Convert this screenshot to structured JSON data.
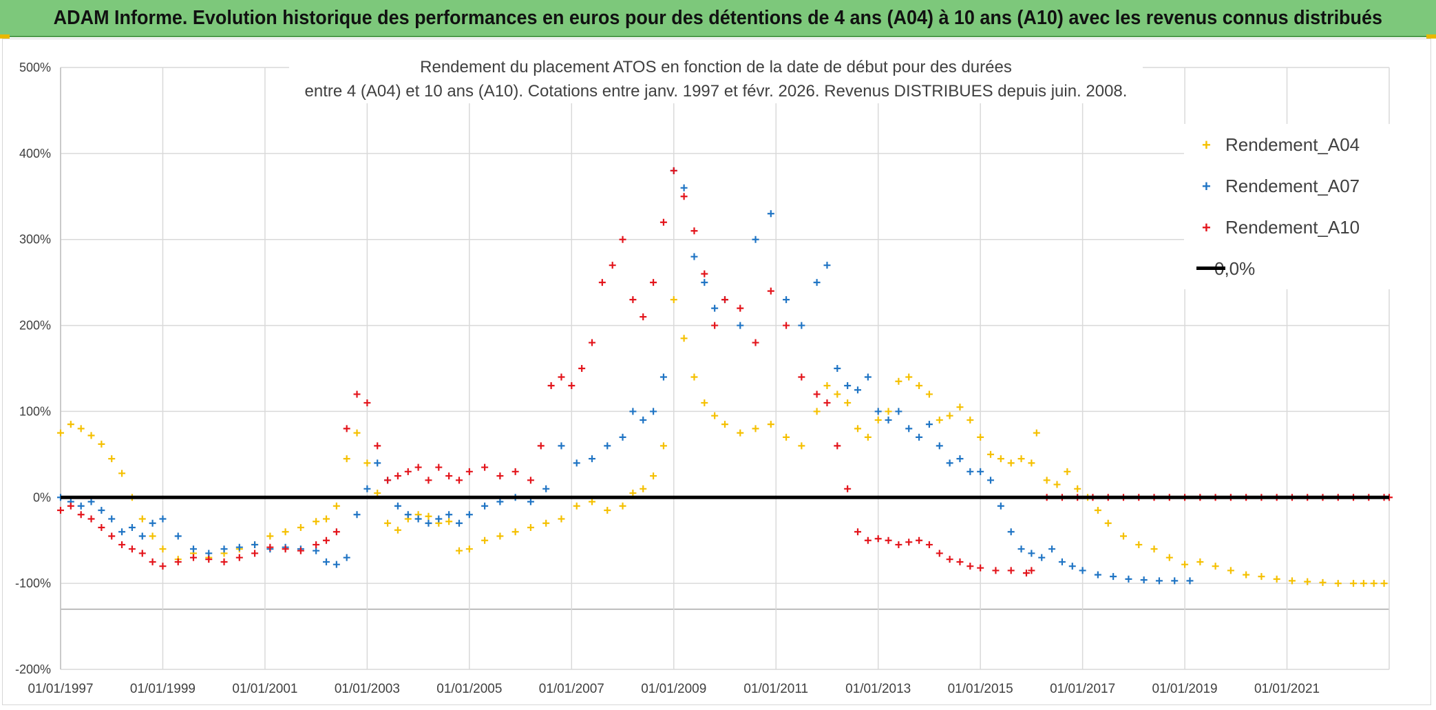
{
  "banner": {
    "title": "ADAM Informe. Evolution historique des performances en euros pour des détentions de 4 ans (A04) à 10 ans (A10) avec les revenus connus distribués"
  },
  "colors": {
    "banner_bg": "#7dc87b",
    "a04": "#f5c000",
    "a07": "#1f74c4",
    "a10": "#e3141b",
    "zero": "#000000",
    "grid": "#d9d9d9",
    "text": "#404040"
  },
  "chart_data": {
    "type": "scatter",
    "title_line1": "Rendement du placement ATOS en fonction de la date de début pour des durées",
    "title_line2": "entre 4 (A04) et 10 ans (A10). Cotations entre janv. 1997 et févr. 2026. Revenus DISTRIBUES depuis juin. 2008.",
    "xlabel": "",
    "ylabel": "",
    "xlim": [
      1997.0,
      2023.0
    ],
    "ylim": [
      -200,
      500
    ],
    "x_ticks": [
      {
        "x": 1997,
        "label": "01/01/1997"
      },
      {
        "x": 1999,
        "label": "01/01/1999"
      },
      {
        "x": 2001,
        "label": "01/01/2001"
      },
      {
        "x": 2003,
        "label": "01/01/2003"
      },
      {
        "x": 2005,
        "label": "01/01/2005"
      },
      {
        "x": 2007,
        "label": "01/01/2007"
      },
      {
        "x": 2009,
        "label": "01/01/2009"
      },
      {
        "x": 2011,
        "label": "01/01/2011"
      },
      {
        "x": 2013,
        "label": "01/01/2013"
      },
      {
        "x": 2015,
        "label": "01/01/2015"
      },
      {
        "x": 2017,
        "label": "01/01/2017"
      },
      {
        "x": 2019,
        "label": "01/01/2019"
      },
      {
        "x": 2021,
        "label": "01/01/2021"
      }
    ],
    "y_ticks": [
      {
        "y": 500,
        "label": "500%"
      },
      {
        "y": 400,
        "label": "400%"
      },
      {
        "y": 300,
        "label": "300%"
      },
      {
        "y": 200,
        "label": "200%"
      },
      {
        "y": 100,
        "label": "100%"
      },
      {
        "y": 0,
        "label": "0%"
      },
      {
        "y": -100,
        "label": "-100%"
      },
      {
        "y": -200,
        "label": "-200%"
      }
    ],
    "extra_gridline_y": -130,
    "legend_position": "top-right",
    "series": [
      {
        "name": "Rendement_A04",
        "marker": "+",
        "x": [
          1997.0,
          1997.2,
          1997.4,
          1997.6,
          1997.8,
          1998.0,
          1998.2,
          1998.4,
          1998.6,
          1998.8,
          1999.0,
          1999.3,
          1999.6,
          1999.9,
          2000.2,
          2000.5,
          2000.8,
          2001.1,
          2001.4,
          2001.7,
          2002.0,
          2002.2,
          2002.4,
          2002.6,
          2002.8,
          2003.0,
          2003.2,
          2003.4,
          2003.6,
          2003.8,
          2004.0,
          2004.2,
          2004.4,
          2004.6,
          2004.8,
          2005.0,
          2005.3,
          2005.6,
          2005.9,
          2006.2,
          2006.5,
          2006.8,
          2007.1,
          2007.4,
          2007.7,
          2008.0,
          2008.2,
          2008.4,
          2008.6,
          2008.8,
          2009.0,
          2009.2,
          2009.4,
          2009.6,
          2009.8,
          2010.0,
          2010.3,
          2010.6,
          2010.9,
          2011.2,
          2011.5,
          2011.8,
          2012.0,
          2012.2,
          2012.4,
          2012.6,
          2012.8,
          2013.0,
          2013.2,
          2013.4,
          2013.6,
          2013.8,
          2014.0,
          2014.2,
          2014.4,
          2014.6,
          2014.8,
          2015.0,
          2015.2,
          2015.4,
          2015.6,
          2015.8,
          2016.0,
          2016.1,
          2016.3,
          2016.5,
          2016.7,
          2016.9,
          2017.1,
          2017.3,
          2017.5,
          2017.8,
          2018.1,
          2018.4,
          2018.7,
          2019.0,
          2019.3,
          2019.6,
          2019.9,
          2020.2,
          2020.5,
          2020.8,
          2021.1,
          2021.4,
          2021.7,
          2022.0,
          2022.3,
          2022.5,
          2022.7,
          2022.9
        ],
        "y": [
          75,
          85,
          80,
          72,
          62,
          45,
          28,
          0,
          -25,
          -45,
          -60,
          -72,
          -65,
          -70,
          -65,
          -60,
          -55,
          -45,
          -40,
          -35,
          -28,
          -25,
          -10,
          45,
          75,
          40,
          5,
          -30,
          -38,
          -25,
          -20,
          -22,
          -30,
          -28,
          -62,
          -60,
          -50,
          -45,
          -40,
          -35,
          -30,
          -25,
          -10,
          -5,
          -15,
          -10,
          5,
          10,
          25,
          60,
          230,
          185,
          140,
          110,
          95,
          85,
          75,
          80,
          85,
          70,
          60,
          100,
          130,
          120,
          110,
          80,
          70,
          90,
          100,
          135,
          140,
          130,
          120,
          90,
          95,
          105,
          90,
          70,
          50,
          45,
          40,
          45,
          40,
          75,
          20,
          15,
          30,
          10,
          0,
          -15,
          -30,
          -45,
          -55,
          -60,
          -70,
          -78,
          -75,
          -80,
          -85,
          -90,
          -92,
          -95,
          -97,
          -98,
          -99,
          -100,
          -100,
          -100,
          -100,
          -100
        ]
      },
      {
        "name": "Rendement_A07",
        "marker": "+",
        "x": [
          1997.0,
          1997.2,
          1997.4,
          1997.6,
          1997.8,
          1998.0,
          1998.2,
          1998.4,
          1998.6,
          1998.8,
          1999.0,
          1999.3,
          1999.6,
          1999.9,
          2000.2,
          2000.5,
          2000.8,
          2001.1,
          2001.4,
          2001.7,
          2002.0,
          2002.2,
          2002.4,
          2002.6,
          2002.8,
          2003.0,
          2003.2,
          2003.4,
          2003.6,
          2003.8,
          2004.0,
          2004.2,
          2004.4,
          2004.6,
          2004.8,
          2005.0,
          2005.3,
          2005.6,
          2005.9,
          2006.2,
          2006.5,
          2006.8,
          2007.1,
          2007.4,
          2007.7,
          2008.0,
          2008.2,
          2008.4,
          2008.6,
          2008.8,
          2009.0,
          2009.2,
          2009.4,
          2009.6,
          2009.8,
          2010.0,
          2010.3,
          2010.6,
          2010.9,
          2011.2,
          2011.5,
          2011.8,
          2012.0,
          2012.2,
          2012.4,
          2012.6,
          2012.8,
          2013.0,
          2013.2,
          2013.4,
          2013.6,
          2013.8,
          2014.0,
          2014.2,
          2014.4,
          2014.6,
          2014.8,
          2015.0,
          2015.2,
          2015.4,
          2015.6,
          2015.8,
          2016.0,
          2016.2,
          2016.4,
          2016.6,
          2016.8,
          2017.0,
          2017.3,
          2017.6,
          2017.9,
          2018.2,
          2018.5,
          2018.8,
          2019.1
        ],
        "y": [
          0,
          -5,
          -10,
          -5,
          -15,
          -25,
          -40,
          -35,
          -45,
          -30,
          -25,
          -45,
          -60,
          -65,
          -60,
          -58,
          -55,
          -60,
          -58,
          -60,
          -62,
          -75,
          -78,
          -70,
          -20,
          10,
          40,
          20,
          -10,
          -20,
          -25,
          -30,
          -25,
          -20,
          -30,
          -20,
          -10,
          -5,
          0,
          -5,
          10,
          60,
          40,
          45,
          60,
          70,
          100,
          90,
          100,
          140,
          380,
          360,
          280,
          250,
          220,
          230,
          200,
          300,
          330,
          230,
          200,
          250,
          270,
          150,
          130,
          125,
          140,
          100,
          90,
          100,
          80,
          70,
          85,
          60,
          40,
          45,
          30,
          30,
          20,
          -10,
          -40,
          -60,
          -65,
          -70,
          -60,
          -75,
          -80,
          -85,
          -90,
          -92,
          -95,
          -96,
          -97,
          -97,
          -97
        ]
      },
      {
        "name": "Rendement_A10",
        "marker": "+",
        "x": [
          1997.0,
          1997.2,
          1997.4,
          1997.6,
          1997.8,
          1998.0,
          1998.2,
          1998.4,
          1998.6,
          1998.8,
          1999.0,
          1999.3,
          1999.6,
          1999.9,
          2000.2,
          2000.5,
          2000.8,
          2001.1,
          2001.4,
          2001.7,
          2002.0,
          2002.2,
          2002.4,
          2002.6,
          2002.8,
          2003.0,
          2003.2,
          2003.4,
          2003.6,
          2003.8,
          2004.0,
          2004.2,
          2004.4,
          2004.6,
          2004.8,
          2005.0,
          2005.3,
          2005.6,
          2005.9,
          2006.2,
          2006.4,
          2006.6,
          2006.8,
          2007.0,
          2007.2,
          2007.4,
          2007.6,
          2007.8,
          2008.0,
          2008.2,
          2008.4,
          2008.6,
          2008.8,
          2009.0,
          2009.2,
          2009.4,
          2009.6,
          2009.8,
          2010.0,
          2010.3,
          2010.6,
          2010.9,
          2011.2,
          2011.5,
          2011.8,
          2012.0,
          2012.2,
          2012.4,
          2012.6,
          2012.8,
          2013.0,
          2013.2,
          2013.4,
          2013.6,
          2013.8,
          2014.0,
          2014.2,
          2014.4,
          2014.6,
          2014.8,
          2015.0,
          2015.3,
          2015.6,
          2015.9,
          2016.0,
          2016.3,
          2016.6,
          2016.9,
          2017.2,
          2017.5,
          2017.8,
          2018.1,
          2018.4,
          2018.7,
          2019.0,
          2019.3,
          2019.6,
          2019.9,
          2020.2,
          2020.5,
          2020.8,
          2021.1,
          2021.4,
          2021.7,
          2022.0,
          2022.3,
          2022.6,
          2022.9,
          2023.0
        ],
        "y": [
          -15,
          -10,
          -20,
          -25,
          -35,
          -45,
          -55,
          -60,
          -65,
          -75,
          -80,
          -75,
          -70,
          -72,
          -75,
          -70,
          -65,
          -58,
          -60,
          -62,
          -55,
          -50,
          -40,
          80,
          120,
          110,
          60,
          20,
          25,
          30,
          35,
          20,
          35,
          25,
          20,
          30,
          35,
          25,
          30,
          20,
          60,
          130,
          140,
          130,
          150,
          180,
          250,
          270,
          300,
          230,
          210,
          250,
          320,
          380,
          350,
          310,
          260,
          200,
          230,
          220,
          180,
          240,
          200,
          140,
          120,
          110,
          60,
          10,
          -40,
          -50,
          -48,
          -50,
          -55,
          -52,
          -50,
          -55,
          -65,
          -72,
          -75,
          -80,
          -82,
          -85,
          -85,
          -88,
          -85,
          0,
          0,
          0,
          0,
          0,
          0,
          0,
          0,
          0,
          0,
          0,
          0,
          0,
          0,
          0,
          0,
          0,
          0,
          0,
          0,
          0,
          0,
          0,
          0
        ]
      },
      {
        "name": "0,0%",
        "type": "line",
        "x": [
          1997.0,
          2023.0
        ],
        "y": [
          0,
          0
        ]
      }
    ]
  }
}
